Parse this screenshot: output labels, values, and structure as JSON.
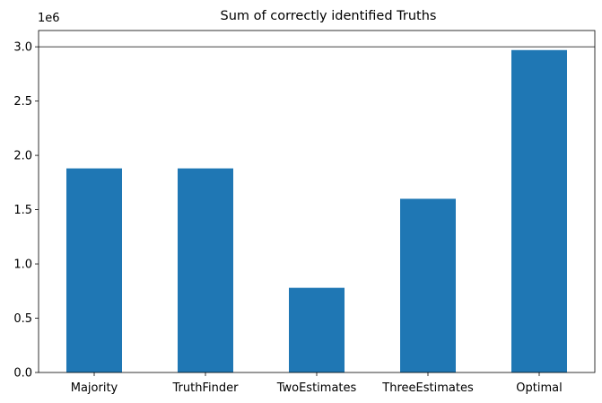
{
  "chart_data": {
    "type": "bar",
    "title": "Sum of correctly identified Truths",
    "xlabel": "",
    "ylabel": "",
    "categories": [
      "Majority",
      "TruthFinder",
      "TwoEstimates",
      "ThreeEstimates",
      "Optimal"
    ],
    "values": [
      1880000,
      1880000,
      780000,
      1600000,
      2970000
    ],
    "ylim": [
      0,
      3150000
    ],
    "y_ticks": [
      0,
      500000,
      1000000,
      1500000,
      2000000,
      2500000,
      3000000
    ],
    "y_tick_labels": [
      "0.0",
      "0.5",
      "1.0",
      "1.5",
      "2.0",
      "2.5",
      "3.0"
    ],
    "y_offset_label": "1e6",
    "reference_line_y": 3000000,
    "bar_color": "#1f77b4",
    "grid": false,
    "legend": "none"
  }
}
